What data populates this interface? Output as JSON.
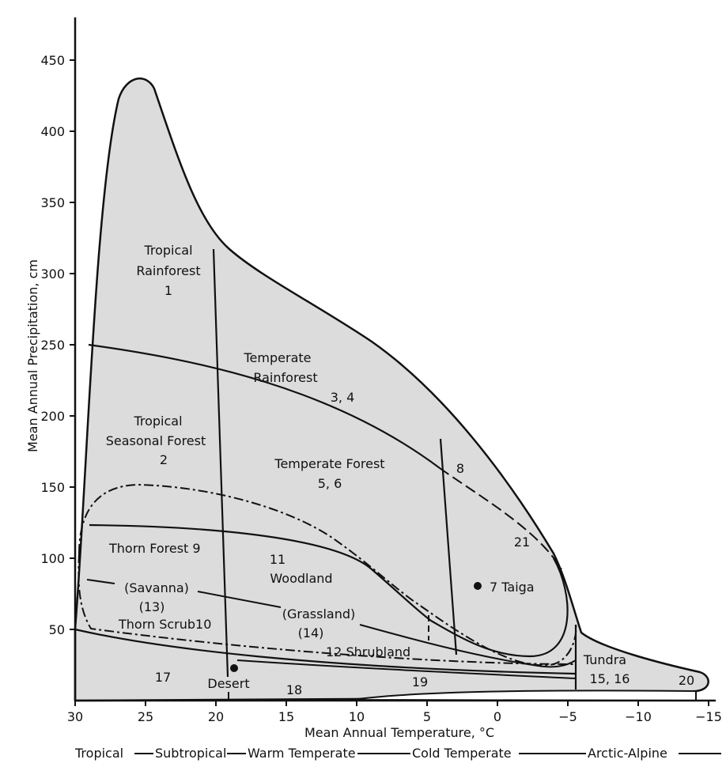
{
  "axes": {
    "x_title": "Mean Annual Temperature, °C",
    "y_title": "Mean Annual Precipitation, cm",
    "x_ticks": [
      "30",
      "25",
      "20",
      "15",
      "10",
      "5",
      "0",
      "−5",
      "−10",
      "−15"
    ],
    "y_ticks": [
      "50",
      "100",
      "150",
      "200",
      "250",
      "300",
      "350",
      "400",
      "450"
    ],
    "x_range": [
      30,
      -15
    ],
    "y_range": [
      0,
      470
    ]
  },
  "regions": {
    "tropical_rainforest": [
      "Tropical",
      "Rainforest",
      "1"
    ],
    "temperate_rainforest": [
      "Temperate",
      "Rainforest",
      "3, 4"
    ],
    "tropical_seasonal_forest": [
      "Tropical",
      "Seasonal Forest",
      "2"
    ],
    "temperate_forest": [
      "Temperate Forest",
      "5, 6"
    ],
    "region_8": "8",
    "region_21": "21",
    "thorn_forest": "Thorn Forest  9",
    "woodland": [
      "11",
      "Woodland"
    ],
    "taiga": "7  Taiga",
    "savanna": [
      "(Savanna)",
      "(13)"
    ],
    "grassland": [
      "(Grassland)",
      "(14)"
    ],
    "thorn_scrub": "Thorn Scrub10",
    "shrubland": "12  Shrubland",
    "tundra": [
      "Tundra",
      "15, 16"
    ],
    "region_17": "17",
    "desert": "Desert",
    "region_18": "18",
    "region_19": "19",
    "region_20": "20"
  },
  "zones": {
    "tropical": "Tropical",
    "subtropical": "Subtropical",
    "warm_temperate": "Warm Temperate",
    "cold_temperate": "Cold Temperate",
    "arctic_alpine": "Arctic-Alpine"
  },
  "colors": {
    "fill": "#dcdcdc",
    "ink": "#111111"
  }
}
